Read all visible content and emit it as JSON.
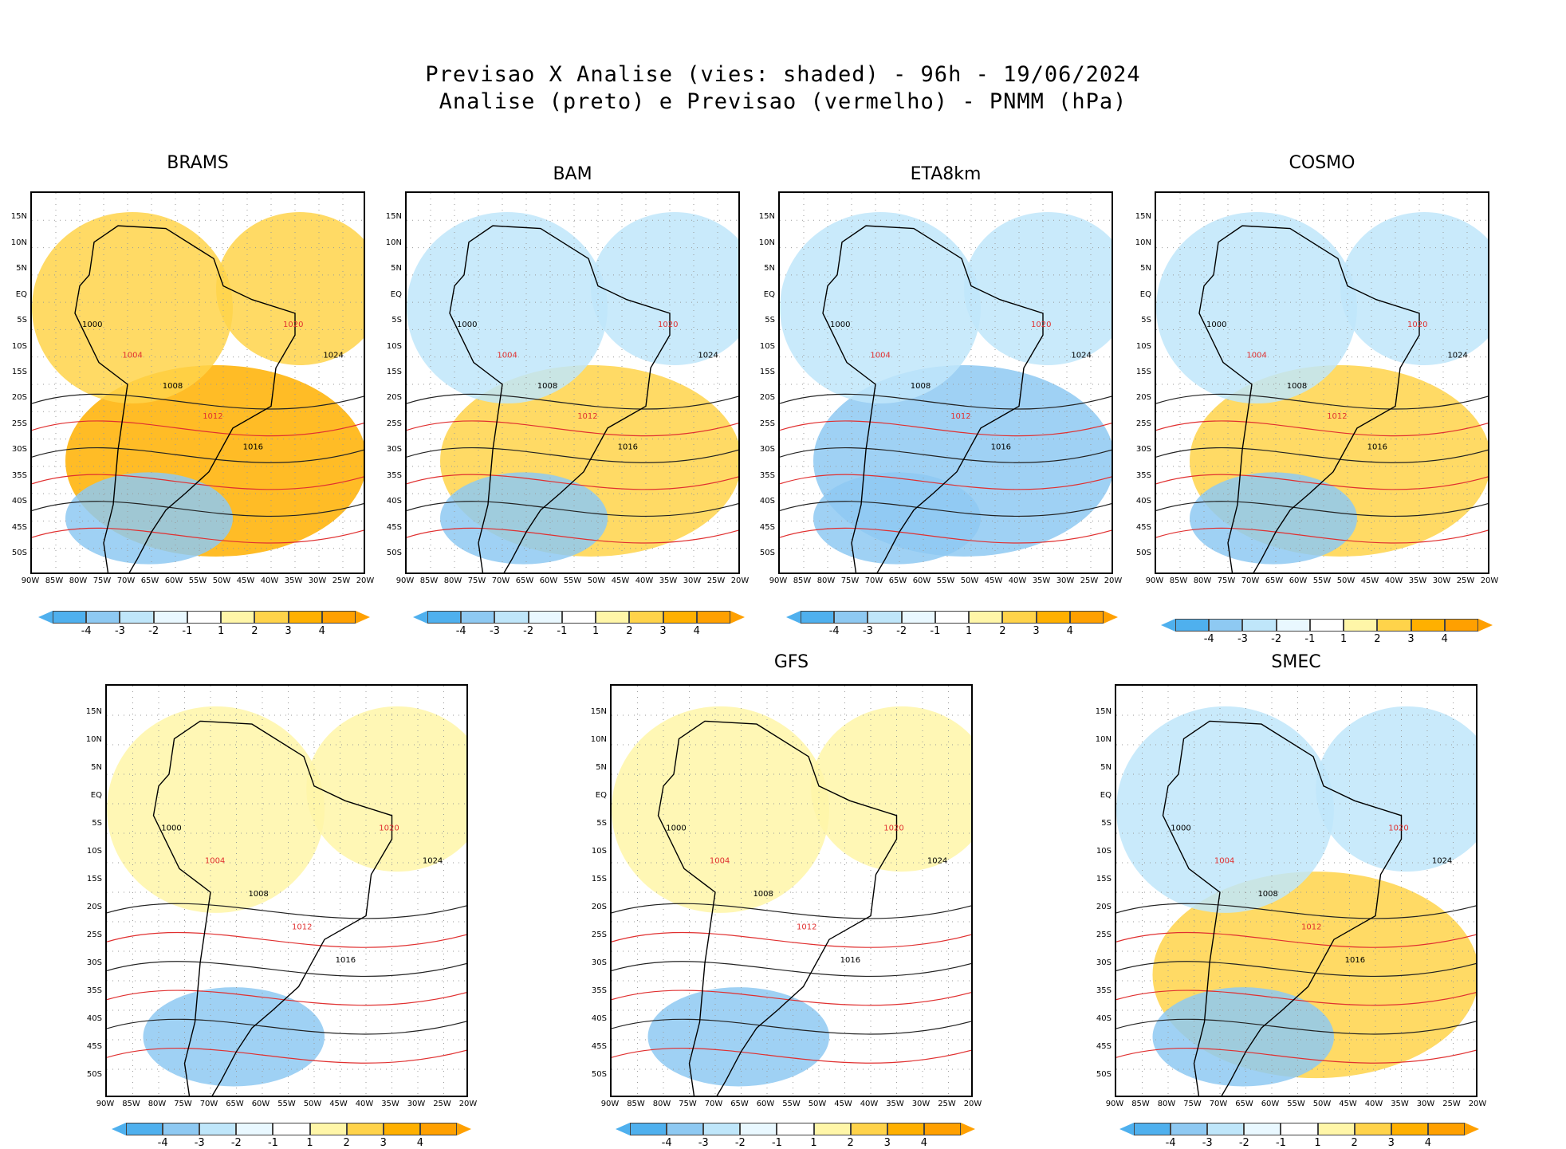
{
  "title": {
    "line1": "Previsao X Analise (vies: shaded) - 96h - 19/06/2024",
    "line2": "Analise (preto) e Previsao (vermelho) - PNMM (hPa)"
  },
  "axes": {
    "lat_labels": [
      "15N",
      "10N",
      "5N",
      "EQ",
      "5S",
      "10S",
      "15S",
      "20S",
      "25S",
      "30S",
      "35S",
      "40S",
      "45S",
      "50S"
    ],
    "lon_labels": [
      "90W",
      "85W",
      "80W",
      "75W",
      "70W",
      "65W",
      "60W",
      "55W",
      "50W",
      "45W",
      "40W",
      "35W",
      "30W",
      "25W",
      "20W"
    ]
  },
  "colorbar": {
    "ticks": [
      "-4",
      "-3",
      "-2",
      "-1",
      "1",
      "2",
      "3",
      "4"
    ],
    "colors": [
      "#4fb0ee",
      "#8ec9f2",
      "#bfe6fa",
      "#e9f8ff",
      "#ffffff",
      "#fff6a8",
      "#ffd34a",
      "#ffb000",
      "#ffa000"
    ]
  },
  "panels": [
    {
      "model": "BRAMS",
      "bias": "warm"
    },
    {
      "model": "BAM",
      "bias": "mixed"
    },
    {
      "model": "ETA8km",
      "bias": "cold"
    },
    {
      "model": "COSMO",
      "bias": "mixed"
    },
    {
      "model": "",
      "bias": "neutral"
    },
    {
      "model": "GFS",
      "bias": "neutral"
    },
    {
      "model": "SMEC",
      "bias": "mixed"
    }
  ],
  "isobars": [
    "1000",
    "1004",
    "1008",
    "1012",
    "1016",
    "1020",
    "1024"
  ]
}
